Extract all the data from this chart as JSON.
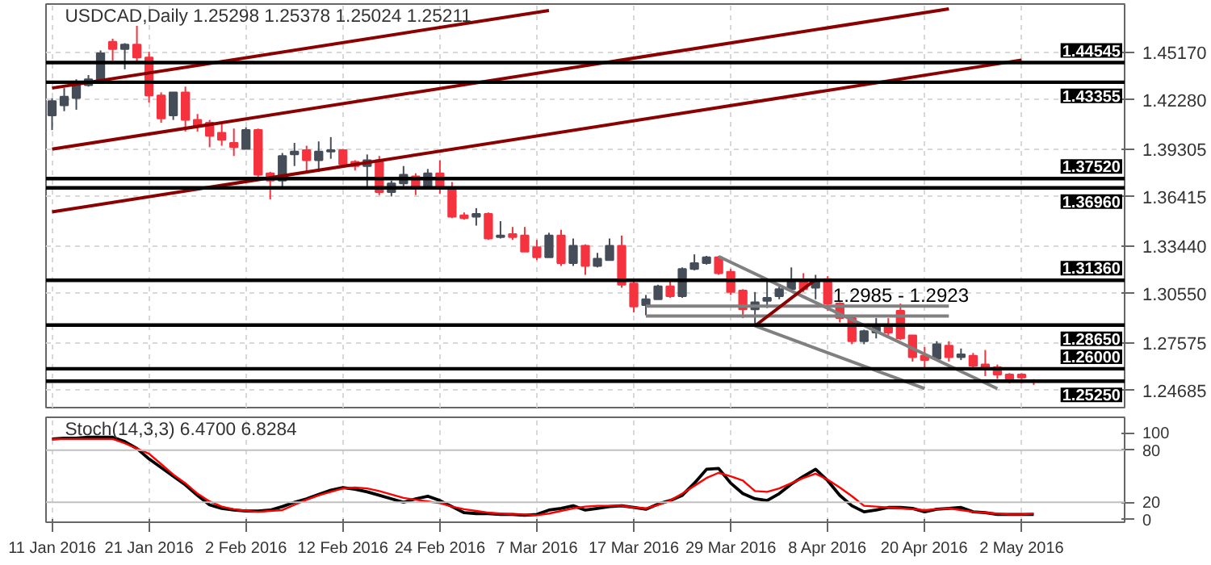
{
  "chart_data": [
    {
      "type": "candlestick",
      "title": "USDCAD,Daily  1.25298 1.25378 1.25024 1.25211",
      "categories": [
        null,
        null,
        null,
        null,
        null,
        null,
        null,
        null,
        null,
        null,
        null,
        null,
        null,
        null,
        null,
        null,
        null,
        null,
        null,
        null,
        null,
        null,
        null,
        null,
        null,
        null,
        null,
        null,
        null,
        null,
        null,
        null,
        null,
        null,
        null,
        null,
        null,
        null,
        null,
        null,
        null,
        null,
        null,
        null,
        null,
        null,
        null,
        null,
        null,
        null,
        null,
        null,
        null,
        null,
        null,
        null,
        null,
        null,
        null,
        null,
        null,
        null,
        null,
        null,
        null,
        null,
        null,
        null,
        null,
        null,
        null,
        null,
        null,
        null,
        null,
        null,
        null,
        null,
        null,
        null,
        null,
        null,
        null,
        null,
        null,
        null,
        null,
        null,
        null
      ],
      "ohlc": [
        [
          1.4134,
          1.4239,
          1.4046,
          1.4221
        ],
        [
          1.4195,
          1.43,
          1.416,
          1.4248
        ],
        [
          1.4239,
          1.4353,
          1.4169,
          1.4327
        ],
        [
          1.4318,
          1.4379,
          1.4309,
          1.4353
        ],
        [
          1.4344,
          1.4528,
          1.4327,
          1.4511
        ],
        [
          1.4581,
          1.4599,
          1.4467,
          1.4537
        ],
        [
          1.4537,
          1.4572,
          1.4414,
          1.4563
        ],
        [
          1.4563,
          1.4677,
          1.4449,
          1.4485
        ],
        [
          1.4485,
          1.452,
          1.4213,
          1.4256
        ],
        [
          1.4256,
          1.4274,
          1.409,
          1.4116
        ],
        [
          1.4134,
          1.4274,
          1.4107,
          1.4274
        ],
        [
          1.4274,
          1.4309,
          1.4037,
          1.4107
        ],
        [
          1.4107,
          1.4143,
          1.4037,
          1.4072
        ],
        [
          1.409,
          1.4107,
          1.3942,
          1.4011
        ],
        [
          1.4029,
          1.4081,
          1.3951,
          1.3986
        ],
        [
          1.3968,
          1.4055,
          1.3889,
          1.3942
        ],
        [
          1.3932,
          1.4063,
          1.3932,
          1.4046
        ],
        [
          1.4046,
          1.4055,
          1.374,
          1.3775
        ],
        [
          1.3784,
          1.3793,
          1.3626,
          1.374
        ],
        [
          1.374,
          1.3907,
          1.3696,
          1.3889
        ],
        [
          1.3898,
          1.3968,
          1.3828,
          1.3916
        ],
        [
          1.3924,
          1.3951,
          1.3784,
          1.3863
        ],
        [
          1.3863,
          1.3977,
          1.3793,
          1.3916
        ],
        [
          1.3916,
          1.4003,
          1.3872,
          1.3924
        ],
        [
          1.3924,
          1.3932,
          1.3819,
          1.3837
        ],
        [
          1.3854,
          1.3863,
          1.3801,
          1.3828
        ],
        [
          1.3828,
          1.3898,
          1.3696,
          1.3863
        ],
        [
          1.3863,
          1.3889,
          1.3652,
          1.367
        ],
        [
          1.367,
          1.374,
          1.3644,
          1.3723
        ],
        [
          1.3723,
          1.3828,
          1.3705,
          1.3775
        ],
        [
          1.3766,
          1.3784,
          1.3652,
          1.3696
        ],
        [
          1.3696,
          1.381,
          1.3687,
          1.3784
        ],
        [
          1.3784,
          1.3863,
          1.3661,
          1.3696
        ],
        [
          1.3696,
          1.3731,
          1.3512,
          1.3521
        ],
        [
          1.353,
          1.3547,
          1.3503,
          1.3512
        ],
        [
          1.3521,
          1.3573,
          1.3467,
          1.3538
        ],
        [
          1.3538,
          1.3547,
          1.3381,
          1.3389
        ],
        [
          1.3397,
          1.3494,
          1.3389,
          1.3407
        ],
        [
          1.3416,
          1.3459,
          1.3381,
          1.3397
        ],
        [
          1.3407,
          1.3459,
          1.3309,
          1.3309
        ],
        [
          1.3337,
          1.3381,
          1.3258,
          1.3275
        ],
        [
          1.3275,
          1.3424,
          1.3275,
          1.3407
        ],
        [
          1.3407,
          1.3442,
          1.3223,
          1.324
        ],
        [
          1.324,
          1.3389,
          1.3223,
          1.3345
        ],
        [
          1.3345,
          1.3354,
          1.3169,
          1.3223
        ],
        [
          1.3223,
          1.3302,
          1.3214,
          1.3267
        ],
        [
          1.3258,
          1.3389,
          1.3258,
          1.3345
        ],
        [
          1.3345,
          1.3407,
          1.3091,
          1.3109
        ],
        [
          1.3117,
          1.3135,
          1.2942,
          1.2977
        ],
        [
          1.2986,
          1.3047,
          1.2924,
          1.3021
        ],
        [
          1.3021,
          1.3109,
          1.3021,
          1.31
        ],
        [
          1.31,
          1.3135,
          1.303,
          1.3039
        ],
        [
          1.3039,
          1.3214,
          1.303,
          1.3205
        ],
        [
          1.3205,
          1.3293,
          1.3196,
          1.324
        ],
        [
          1.324,
          1.3284,
          1.3231,
          1.3275
        ],
        [
          1.3275,
          1.3284,
          1.3169,
          1.3179
        ],
        [
          1.3188,
          1.3205,
          1.3047,
          1.3065
        ],
        [
          1.3074,
          1.3082,
          1.2907,
          1.296
        ],
        [
          1.296,
          1.3065,
          1.2863,
          1.3003
        ],
        [
          1.3012,
          1.3144,
          1.2968,
          1.303
        ],
        [
          1.3039,
          1.3109,
          1.3021,
          1.3082
        ],
        [
          1.3082,
          1.3214,
          1.3065,
          1.3135
        ],
        [
          1.3135,
          1.3179,
          1.3065,
          1.3082
        ],
        [
          1.3091,
          1.3169,
          1.3021,
          1.3135
        ],
        [
          1.3144,
          1.3161,
          1.2951,
          1.2995
        ],
        [
          1.2995,
          1.3003,
          1.2881,
          1.2907
        ],
        [
          1.2907,
          1.2907,
          1.2749,
          1.2767
        ],
        [
          1.2767,
          1.2837,
          1.2749,
          1.2828
        ],
        [
          1.2819,
          1.2907,
          1.2784,
          1.2854
        ],
        [
          1.2854,
          1.2907,
          1.2802,
          1.2819
        ],
        [
          1.2951,
          1.2995,
          1.2775,
          1.2784
        ],
        [
          1.2802,
          1.2802,
          1.2644,
          1.267
        ],
        [
          1.2679,
          1.2732,
          1.26,
          1.2653
        ],
        [
          1.2661,
          1.2767,
          1.2653,
          1.2749
        ],
        [
          1.274,
          1.2767,
          1.2644,
          1.267
        ],
        [
          1.267,
          1.2723,
          1.2653,
          1.2688
        ],
        [
          1.2679,
          1.2696,
          1.2609,
          1.2618
        ],
        [
          1.2626,
          1.2714,
          1.2556,
          1.2609
        ],
        [
          1.2609,
          1.2626,
          1.2539,
          1.2565
        ],
        [
          1.2565,
          1.2574,
          1.2512,
          1.2539
        ],
        [
          1.2565,
          1.2574,
          1.2512,
          1.2547
        ],
        [
          1.25298,
          1.25378,
          1.25024,
          1.25211
        ],
        null,
        null,
        null,
        null,
        null,
        null,
        null
      ],
      "colors": [
        "#454d59",
        "#454d59",
        "#454d59",
        "#454d59",
        "#454d59",
        "#f5333f",
        "#454d59",
        "#f5333f",
        "#f5333f",
        "#f5333f",
        "#454d59",
        "#f5333f",
        "#f5333f",
        "#f5333f",
        "#f5333f",
        "#f5333f",
        "#454d59",
        "#f5333f",
        "#f5333f",
        "#454d59",
        "#454d59",
        "#f5333f",
        "#454d59",
        "#454d59",
        "#f5333f",
        "#f5333f",
        "#454d59",
        "#f5333f",
        "#454d59",
        "#454d59",
        "#f5333f",
        "#454d59",
        "#f5333f",
        "#f5333f",
        "#f5333f",
        "#454d59",
        "#f5333f",
        "#454d59",
        "#f5333f",
        "#f5333f",
        "#f5333f",
        "#454d59",
        "#f5333f",
        "#454d59",
        "#f5333f",
        "#454d59",
        "#454d59",
        "#f5333f",
        "#f5333f",
        "#454d59",
        "#454d59",
        "#f5333f",
        "#454d59",
        "#454d59",
        "#454d59",
        "#f5333f",
        "#f5333f",
        "#f5333f",
        "#454d59",
        "#454d59",
        "#454d59",
        "#454d59",
        "#f5333f",
        "#454d59",
        "#f5333f",
        "#f5333f",
        "#f5333f",
        "#454d59",
        "#454d59",
        "#f5333f",
        "#f5333f",
        "#f5333f",
        "#f5333f",
        "#454d59",
        "#f5333f",
        "#454d59",
        "#f5333f",
        "#f5333f",
        "#f5333f",
        "#f5333f",
        "#f5333f",
        "#f5333f",
        null,
        null,
        null,
        null,
        null,
        null,
        null
      ],
      "series": [
        {
          "type": "line",
          "color": "#8b0000",
          "values": [
            1.43,
            null,
            null,
            null,
            null,
            null,
            null,
            null,
            null,
            null,
            null,
            null,
            null,
            null,
            null,
            null,
            null,
            null,
            null,
            null,
            null,
            null,
            null,
            null,
            null,
            null,
            null,
            null,
            null,
            null,
            null,
            null,
            null,
            null,
            null,
            null,
            null,
            null,
            null,
            null,
            null,
            1.477,
            null,
            null,
            null,
            null,
            null,
            null,
            null,
            null,
            null,
            null,
            null,
            null,
            null,
            null,
            null,
            null,
            null,
            null,
            null,
            null,
            null,
            null,
            null,
            null,
            null,
            null,
            null,
            null,
            null,
            null,
            null,
            null,
            null,
            null,
            null,
            null,
            null,
            null,
            null,
            null,
            null,
            null,
            null,
            null,
            null,
            null,
            null
          ]
        },
        {
          "type": "line",
          "color": "#8b0000",
          "values": [
            1.393,
            null,
            null,
            null,
            null,
            null,
            null,
            null,
            null,
            null,
            null,
            null,
            null,
            null,
            null,
            null,
            null,
            null,
            null,
            null,
            null,
            null,
            null,
            null,
            null,
            null,
            null,
            null,
            null,
            null,
            null,
            null,
            null,
            null,
            null,
            null,
            null,
            null,
            null,
            null,
            null,
            null,
            null,
            null,
            null,
            null,
            null,
            null,
            null,
            null,
            null,
            null,
            null,
            null,
            null,
            null,
            null,
            null,
            null,
            null,
            null,
            null,
            null,
            null,
            null,
            null,
            null,
            null,
            null,
            null,
            null,
            null,
            null,
            null,
            1.478,
            null,
            null,
            null,
            null,
            null,
            null,
            null,
            null,
            null,
            null,
            null,
            null,
            null,
            null
          ]
        },
        {
          "type": "line",
          "color": "#8b0000",
          "values": [
            1.355,
            null,
            null,
            null,
            null,
            null,
            null,
            null,
            null,
            null,
            null,
            null,
            null,
            null,
            null,
            null,
            null,
            null,
            null,
            null,
            null,
            null,
            null,
            null,
            null,
            null,
            null,
            null,
            null,
            null,
            null,
            null,
            null,
            null,
            null,
            null,
            null,
            null,
            null,
            null,
            null,
            null,
            null,
            null,
            null,
            null,
            null,
            null,
            null,
            null,
            null,
            null,
            null,
            null,
            null,
            null,
            null,
            null,
            null,
            null,
            null,
            null,
            null,
            null,
            null,
            null,
            null,
            null,
            null,
            null,
            null,
            null,
            null,
            null,
            null,
            null,
            null,
            null,
            null,
            null,
            1.447,
            null,
            null,
            null,
            null,
            null,
            null,
            null,
            null
          ]
        },
        {
          "type": "line",
          "color": "#808080",
          "values": [
            null,
            null,
            null,
            null,
            null,
            null,
            null,
            null,
            null,
            null,
            null,
            null,
            null,
            null,
            null,
            null,
            null,
            null,
            null,
            null,
            null,
            null,
            null,
            null,
            null,
            null,
            null,
            null,
            null,
            null,
            null,
            null,
            null,
            null,
            null,
            null,
            null,
            null,
            null,
            null,
            null,
            null,
            null,
            null,
            null,
            null,
            null,
            null,
            null,
            1.298,
            null,
            null,
            null,
            null,
            null,
            null,
            null,
            null,
            null,
            null,
            null,
            null,
            null,
            null,
            null,
            null,
            null,
            null,
            null,
            null,
            null,
            null,
            null,
            null,
            1.298,
            null,
            null,
            null,
            null,
            null,
            null,
            null,
            null,
            null,
            null,
            null,
            null,
            null,
            null
          ]
        },
        {
          "type": "line",
          "color": "#808080",
          "values": [
            null,
            null,
            null,
            null,
            null,
            null,
            null,
            null,
            null,
            null,
            null,
            null,
            null,
            null,
            null,
            null,
            null,
            null,
            null,
            null,
            null,
            null,
            null,
            null,
            null,
            null,
            null,
            null,
            null,
            null,
            null,
            null,
            null,
            null,
            null,
            null,
            null,
            null,
            null,
            null,
            null,
            null,
            null,
            null,
            null,
            null,
            null,
            null,
            null,
            1.292,
            null,
            null,
            null,
            null,
            null,
            null,
            null,
            null,
            null,
            null,
            null,
            null,
            null,
            null,
            null,
            null,
            null,
            null,
            null,
            null,
            null,
            null,
            null,
            null,
            1.292,
            null,
            null,
            null,
            null,
            null,
            null,
            null,
            null,
            null,
            null,
            null,
            null,
            null,
            null
          ]
        },
        {
          "type": "line",
          "color": "#808080",
          "values": [
            null,
            null,
            null,
            null,
            null,
            null,
            null,
            null,
            null,
            null,
            null,
            null,
            null,
            null,
            null,
            null,
            null,
            null,
            null,
            null,
            null,
            null,
            null,
            null,
            null,
            null,
            null,
            null,
            null,
            null,
            null,
            null,
            null,
            null,
            null,
            null,
            null,
            null,
            null,
            null,
            null,
            null,
            null,
            null,
            null,
            null,
            null,
            null,
            null,
            null,
            null,
            null,
            null,
            null,
            null,
            1.328,
            null,
            null,
            null,
            null,
            null,
            null,
            null,
            null,
            null,
            null,
            null,
            null,
            null,
            null,
            null,
            null,
            null,
            null,
            null,
            null,
            null,
            null,
            1.248,
            null,
            null,
            null,
            null,
            null,
            null,
            null,
            null,
            null,
            null
          ]
        },
        {
          "type": "line",
          "color": "#808080",
          "values": [
            null,
            null,
            null,
            null,
            null,
            null,
            null,
            null,
            null,
            null,
            null,
            null,
            null,
            null,
            null,
            null,
            null,
            null,
            null,
            null,
            null,
            null,
            null,
            null,
            null,
            null,
            null,
            null,
            null,
            null,
            null,
            null,
            null,
            null,
            null,
            null,
            null,
            null,
            null,
            null,
            null,
            null,
            null,
            null,
            null,
            null,
            null,
            null,
            null,
            null,
            null,
            null,
            null,
            null,
            null,
            null,
            null,
            null,
            1.286,
            null,
            null,
            null,
            null,
            null,
            null,
            null,
            null,
            null,
            null,
            null,
            null,
            null,
            1.248,
            null,
            null,
            null,
            null,
            null,
            null,
            null,
            null,
            null,
            null,
            null,
            null,
            null,
            null,
            null,
            null
          ]
        },
        {
          "type": "line",
          "color": "#8b0000",
          "values": [
            null,
            null,
            null,
            null,
            null,
            null,
            null,
            null,
            null,
            null,
            null,
            null,
            null,
            null,
            null,
            null,
            null,
            null,
            null,
            null,
            null,
            null,
            null,
            null,
            null,
            null,
            null,
            null,
            null,
            null,
            null,
            null,
            null,
            null,
            null,
            null,
            null,
            null,
            null,
            null,
            null,
            null,
            null,
            null,
            null,
            null,
            null,
            null,
            null,
            null,
            null,
            null,
            null,
            null,
            null,
            null,
            null,
            null,
            1.286,
            null,
            null,
            null,
            null,
            1.314,
            null,
            null,
            null,
            null,
            null,
            null,
            null,
            null,
            null,
            null,
            null,
            null,
            null,
            null,
            null,
            null,
            null,
            null,
            null,
            null,
            null,
            null,
            null,
            null,
            null
          ]
        }
      ],
      "ylim": [
        1.2365,
        1.4809
      ],
      "yticks": [
        {
          "value": 1.4517,
          "label": "1.45170"
        },
        {
          "value": 1.4228,
          "label": "1.42280"
        },
        {
          "value": 1.39305,
          "label": "1.39305"
        },
        {
          "value": 1.36415,
          "label": "1.36415"
        },
        {
          "value": 1.3344,
          "label": "1.33440"
        },
        {
          "value": 1.3055,
          "label": "1.30550"
        },
        {
          "value": 1.27575,
          "label": "1.27575"
        },
        {
          "value": 1.24685,
          "label": "1.24685"
        }
      ],
      "ref_lines": [
        {
          "axis": "y",
          "value": 1.44545,
          "label": "1.44545",
          "color": "#000000"
        },
        {
          "axis": "y",
          "value": 1.43355,
          "label": "1.43355",
          "color": "#000000"
        },
        {
          "axis": "y",
          "value": 1.3752,
          "label": "1.37520",
          "color": "#000000"
        },
        {
          "axis": "y",
          "value": 1.3696,
          "label": "1.36960",
          "color": "#000000"
        },
        {
          "axis": "y",
          "value": 1.3136,
          "label": "1.31360",
          "color": "#000000"
        },
        {
          "axis": "y",
          "value": 1.2865,
          "label": "1.28650",
          "color": "#000000"
        },
        {
          "axis": "y",
          "value": 1.26,
          "label": "1.26000",
          "color": "#000000"
        },
        {
          "axis": "y",
          "value": 1.2525,
          "label": "1.25250",
          "color": "#000000"
        }
      ],
      "annotations": [
        "1.2985 - 1.2923"
      ],
      "grid": true,
      "tick_labels": "y"
    },
    {
      "type": "line",
      "title": "Stoch(14,3,3) 6.4700 6.8284",
      "categories": [
        "11 Jan 2016",
        null,
        null,
        null,
        null,
        null,
        null,
        null,
        "21 Jan 2016",
        null,
        null,
        null,
        null,
        null,
        null,
        null,
        "2 Feb 2016",
        null,
        null,
        null,
        null,
        null,
        null,
        null,
        "12 Feb 2016",
        null,
        null,
        null,
        null,
        null,
        null,
        null,
        "24 Feb 2016",
        null,
        null,
        null,
        null,
        null,
        null,
        null,
        "7 Mar 2016",
        null,
        null,
        null,
        null,
        null,
        null,
        null,
        "17 Mar 2016",
        null,
        null,
        null,
        null,
        null,
        null,
        null,
        "29 Mar 2016",
        null,
        null,
        null,
        null,
        null,
        null,
        null,
        "8 Apr 2016",
        null,
        null,
        null,
        null,
        null,
        null,
        null,
        "20 Apr 2016",
        null,
        null,
        null,
        null,
        null,
        null,
        null,
        "2 May 2016",
        null,
        null,
        null,
        null,
        null,
        null,
        null,
        null
      ],
      "series": [
        {
          "color": "#000000",
          "values": [
            93,
            94,
            94,
            95,
            95,
            95,
            90,
            82,
            70,
            60,
            50,
            40,
            28,
            17,
            13,
            11,
            10,
            10,
            11,
            15,
            20,
            24,
            29,
            34,
            37,
            35,
            32,
            28,
            24,
            20,
            24,
            27,
            22,
            15,
            8,
            7,
            7,
            6,
            6,
            5,
            6,
            11,
            13,
            16,
            11,
            13,
            15,
            16,
            14,
            12,
            18,
            22,
            28,
            42,
            58,
            59,
            42,
            30,
            24,
            22,
            30,
            41,
            50,
            58,
            45,
            28,
            16,
            9,
            11,
            14,
            14,
            13,
            9,
            12,
            13,
            14,
            9,
            8,
            6,
            6,
            6,
            6,
            null,
            null,
            null,
            null,
            null,
            null,
            null
          ]
        },
        {
          "color": "#ff0000",
          "values": [
            93,
            93,
            93,
            93,
            93,
            93,
            88,
            82,
            76,
            64,
            52,
            42,
            30,
            21,
            15,
            12,
            10,
            9,
            10,
            11,
            17,
            23,
            28,
            32,
            36,
            37,
            36,
            33,
            29,
            25,
            23,
            21,
            19,
            15,
            12,
            10,
            8,
            7,
            6,
            6,
            5,
            7,
            10,
            13,
            15,
            16,
            16,
            16,
            14,
            13,
            17,
            22,
            30,
            39,
            48,
            54,
            50,
            45,
            33,
            32,
            36,
            42,
            48,
            53,
            46,
            37,
            27,
            16,
            15,
            14,
            13,
            12,
            11,
            12,
            13,
            11,
            9,
            8,
            7,
            6,
            6,
            7,
            null,
            null,
            null,
            null,
            null,
            null,
            null
          ]
        }
      ],
      "ylim": [
        -3,
        118
      ],
      "yticks": [
        0,
        20,
        80,
        100
      ],
      "ref_lines": [
        {
          "axis": "y",
          "value": 20,
          "color": "#c0c0c0"
        },
        {
          "axis": "y",
          "value": 80,
          "color": "#c0c0c0"
        }
      ],
      "grid": "x"
    }
  ]
}
